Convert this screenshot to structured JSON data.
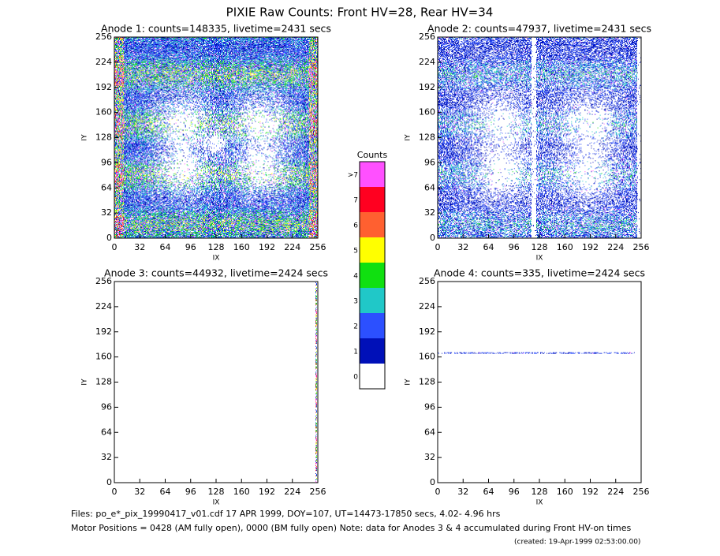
{
  "title": "PIXIE Raw Counts:  Front HV=28, Rear HV=34",
  "chart_data": [
    {
      "type": "heatmap",
      "title": "Anode 1: counts=148335, livetime=2431 secs",
      "x_label": "IX",
      "y_label": "IY",
      "xlim": [
        0,
        256
      ],
      "ylim": [
        0,
        256
      ],
      "xticks": [
        0,
        32,
        64,
        96,
        128,
        160,
        192,
        224,
        256
      ],
      "yticks": [
        0,
        32,
        64,
        96,
        128,
        160,
        192,
        224,
        256
      ]
    },
    {
      "type": "heatmap",
      "title": "Anode 2: counts=47937, livetime=2431 secs",
      "x_label": "IX",
      "y_label": "IY",
      "xlim": [
        0,
        256
      ],
      "ylim": [
        0,
        256
      ],
      "xticks": [
        0,
        32,
        64,
        96,
        128,
        160,
        192,
        224,
        256
      ],
      "yticks": [
        0,
        32,
        64,
        96,
        128,
        160,
        192,
        224,
        256
      ]
    },
    {
      "type": "heatmap",
      "title": "Anode 3: counts=44932, livetime=2424 secs",
      "x_label": "IX",
      "y_label": "IY",
      "xlim": [
        0,
        256
      ],
      "ylim": [
        0,
        256
      ],
      "xticks": [
        0,
        32,
        64,
        96,
        128,
        160,
        192,
        224,
        256
      ],
      "yticks": [
        0,
        32,
        64,
        96,
        128,
        160,
        192,
        224,
        256
      ]
    },
    {
      "type": "heatmap",
      "title": "Anode 4: counts=335, livetime=2424 secs",
      "x_label": "IX",
      "y_label": "IY",
      "xlim": [
        0,
        256
      ],
      "ylim": [
        0,
        256
      ],
      "xticks": [
        0,
        32,
        64,
        96,
        128,
        160,
        192,
        224,
        256
      ],
      "yticks": [
        0,
        32,
        64,
        96,
        128,
        160,
        192,
        224,
        256
      ]
    }
  ],
  "colorbar": {
    "title": "Counts",
    "labels": [
      "0",
      "1",
      "2",
      "3",
      "4",
      "5",
      "6",
      "7",
      ">7"
    ],
    "colors": [
      "#ffffff",
      "#0010b8",
      "#2c50ff",
      "#20c8c8",
      "#10e010",
      "#ffff00",
      "#ff6030",
      "#ff0020",
      "#ff50ff"
    ]
  },
  "footer": {
    "files": "Files: po_e*_pix_19990417_v01.cdf    17 APR 1999, DOY=107, UT=14473-17850 secs,  4.02- 4.96 hrs",
    "motor": "Motor Positions = 0428 (AM fully open), 0000 (BM fully open)    Note: data for Anodes 3 & 4 accumulated during Front HV-on times",
    "created": "(created: 19-Apr-1999 02:53:00.00)"
  }
}
